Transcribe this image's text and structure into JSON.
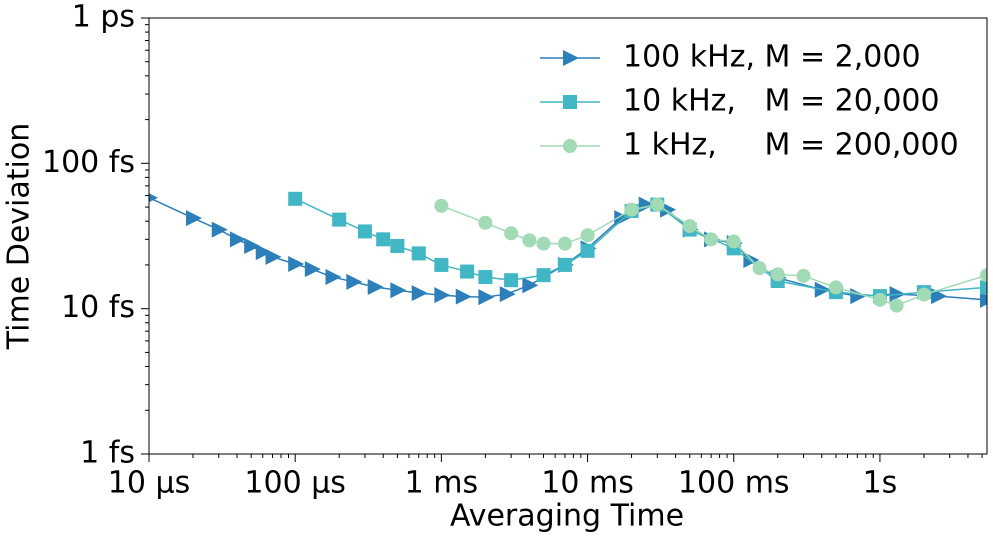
{
  "chart_data": {
    "type": "line",
    "xlabel": "Averaging Time",
    "ylabel": "Time Deviation",
    "xscale": "log",
    "yscale": "log",
    "minor_ticks": true,
    "legend": "upper right",
    "xlim": [
      1e-05,
      5.4
    ],
    "ylim": [
      1,
      1000
    ],
    "xticks": [
      {
        "value": 1e-05,
        "label": "10 μs"
      },
      {
        "value": 0.0001,
        "label": "100 μs"
      },
      {
        "value": 0.001,
        "label": "1 ms"
      },
      {
        "value": 0.01,
        "label": "10 ms"
      },
      {
        "value": 0.1,
        "label": "100 ms"
      },
      {
        "value": 1,
        "label": "1s"
      }
    ],
    "yticks": [
      {
        "value": 1,
        "label": "1 fs"
      },
      {
        "value": 10,
        "label": "10 fs"
      },
      {
        "value": 100,
        "label": "100 fs"
      },
      {
        "value": 1000,
        "label": "1 ps"
      }
    ],
    "series": [
      {
        "name": "100 kHz, M = 2,000",
        "color": "#2c7fb8",
        "marker": "triangle-right",
        "x": [
          1e-05,
          2e-05,
          3e-05,
          4e-05,
          5e-05,
          6e-05,
          7e-05,
          0.0001,
          0.00013,
          0.00018,
          0.00025,
          0.00035,
          0.0005,
          0.0007,
          0.001,
          0.0014,
          0.002,
          0.0028,
          0.004,
          0.007,
          0.01,
          0.017,
          0.025,
          0.035,
          0.05,
          0.07,
          0.1,
          0.13,
          0.2,
          0.4,
          0.7,
          1.3,
          2.5,
          5.4
        ],
        "values": [
          58,
          42,
          35,
          30,
          27,
          24.5,
          22.7,
          20.3,
          18.7,
          16.5,
          15.3,
          14.1,
          13.4,
          12.8,
          12.4,
          12.1,
          12,
          12.6,
          14.5,
          20,
          26,
          42,
          52,
          48,
          35,
          30,
          28.3,
          21.6,
          16.3,
          13.5,
          12.2,
          12.6,
          12.2,
          11.5
        ]
      },
      {
        "name": "10 kHz,   M = 20,000",
        "color": "#41b6c4",
        "marker": "square",
        "x": [
          0.0001,
          0.0002,
          0.0003,
          0.0004,
          0.0005,
          0.0007,
          0.001,
          0.0015,
          0.002,
          0.003,
          0.005,
          0.007,
          0.01,
          0.02,
          0.03,
          0.05,
          0.1,
          0.2,
          0.5,
          1,
          2,
          5.4
        ],
        "values": [
          57,
          41,
          34,
          30,
          27,
          24,
          20,
          18,
          16.5,
          15.7,
          17,
          20,
          25,
          47,
          52,
          35,
          26,
          15.5,
          13,
          12.2,
          13,
          14
        ]
      },
      {
        "name": "1 kHz,     M = 200,000",
        "color": "#a1dab4",
        "marker": "circle",
        "x": [
          0.001,
          0.002,
          0.003,
          0.004,
          0.005,
          0.007,
          0.01,
          0.02,
          0.03,
          0.05,
          0.07,
          0.1,
          0.15,
          0.2,
          0.3,
          0.5,
          1,
          1.3,
          2,
          5.4
        ],
        "values": [
          51,
          39,
          33,
          29.5,
          28,
          28,
          32,
          48,
          52,
          37,
          30,
          29,
          19,
          17.2,
          16.8,
          14,
          11.5,
          10.5,
          12.5,
          17
        ]
      }
    ]
  }
}
